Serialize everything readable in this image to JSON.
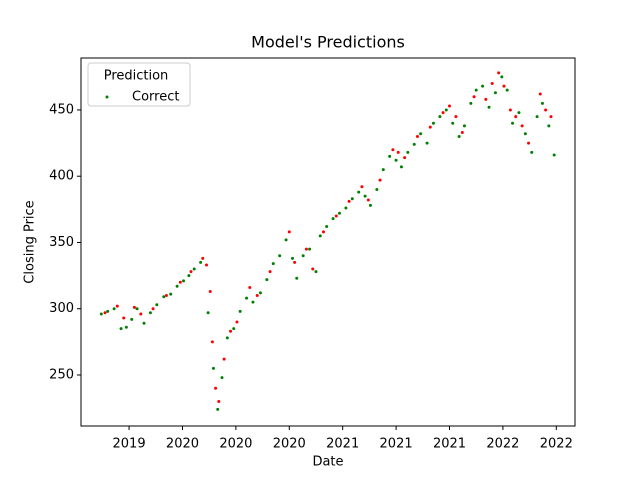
{
  "chart_data": {
    "type": "scatter",
    "title": "Model's Predictions",
    "x_label": "Date",
    "y_label": "Closing Price",
    "legend_title": "Prediction",
    "legend": "upper left",
    "xlim": [
      0.1,
      9.35
    ],
    "ylim": [
      211.5,
      489.2
    ],
    "xticks": [
      {
        "value": 1,
        "label": "2019"
      },
      {
        "value": 2,
        "label": "2020"
      },
      {
        "value": 3,
        "label": "2020"
      },
      {
        "value": 4,
        "label": "2020"
      },
      {
        "value": 5,
        "label": "2021"
      },
      {
        "value": 6,
        "label": "2021"
      },
      {
        "value": 7,
        "label": "2021"
      },
      {
        "value": 8,
        "label": "2022"
      },
      {
        "value": 9,
        "label": "2022"
      }
    ],
    "yticks": [
      250,
      300,
      350,
      400,
      450
    ],
    "series": [
      {
        "name": "Correct",
        "color": "#008000",
        "x": [
          0.48,
          0.6,
          0.72,
          0.85,
          0.95,
          1.05,
          1.15,
          1.28,
          1.4,
          1.52,
          1.65,
          1.78,
          1.9,
          2.02,
          2.12,
          2.22,
          2.34,
          2.48,
          2.58,
          2.66,
          2.74,
          2.84,
          2.96,
          3.08,
          3.2,
          3.32,
          3.46,
          3.58,
          3.7,
          3.82,
          3.94,
          4.06,
          4.14,
          4.26,
          4.38,
          4.5,
          4.58,
          4.7,
          4.82,
          4.94,
          5.06,
          5.18,
          5.3,
          5.42,
          5.52,
          5.64,
          5.76,
          5.88,
          6.0,
          6.1,
          6.22,
          6.34,
          6.46,
          6.58,
          6.7,
          6.82,
          6.94,
          7.06,
          7.18,
          7.28,
          7.4,
          7.5,
          7.62,
          7.74,
          7.86,
          7.98,
          8.08,
          8.18,
          8.3,
          8.42,
          8.54,
          8.64,
          8.74,
          8.86,
          8.96
        ],
        "values": [
          296,
          298,
          300,
          285,
          286,
          292,
          300,
          289,
          297,
          303,
          309,
          311,
          317,
          321,
          325,
          330,
          335,
          297,
          255,
          224,
          248,
          278,
          285,
          298,
          308,
          305,
          312,
          322,
          334,
          340,
          352,
          338,
          323,
          340,
          345,
          328,
          355,
          362,
          368,
          372,
          376,
          383,
          388,
          385,
          378,
          390,
          405,
          415,
          412,
          407,
          418,
          424,
          432,
          425,
          440,
          445,
          450,
          440,
          430,
          438,
          455,
          465,
          468,
          452,
          463,
          475,
          465,
          440,
          448,
          432,
          418,
          445,
          455,
          438,
          416
        ]
      },
      {
        "color": "#ff0000",
        "x": [
          0.55,
          0.78,
          0.9,
          1.1,
          1.22,
          1.45,
          1.7,
          1.96,
          2.16,
          2.38,
          2.45,
          2.52,
          2.56,
          2.62,
          2.68,
          2.78,
          2.9,
          3.02,
          3.26,
          3.4,
          3.64,
          4.0,
          4.1,
          4.32,
          4.44,
          4.64,
          4.88,
          5.12,
          5.36,
          5.48,
          5.7,
          5.94,
          6.04,
          6.16,
          6.4,
          6.64,
          6.88,
          7.0,
          7.12,
          7.24,
          7.46,
          7.68,
          7.8,
          7.92,
          8.02,
          8.14,
          8.24,
          8.36,
          8.48,
          8.7,
          8.8,
          8.9
        ],
        "values": [
          297,
          302,
          293,
          301,
          296,
          300,
          310,
          320,
          328,
          338,
          333,
          313,
          275,
          240,
          230,
          262,
          283,
          290,
          316,
          310,
          328,
          358,
          335,
          345,
          330,
          358,
          370,
          381,
          392,
          382,
          397,
          420,
          418,
          414,
          430,
          437,
          448,
          453,
          445,
          433,
          460,
          458,
          470,
          478,
          468,
          450,
          445,
          438,
          425,
          462,
          450,
          445
        ]
      }
    ]
  }
}
